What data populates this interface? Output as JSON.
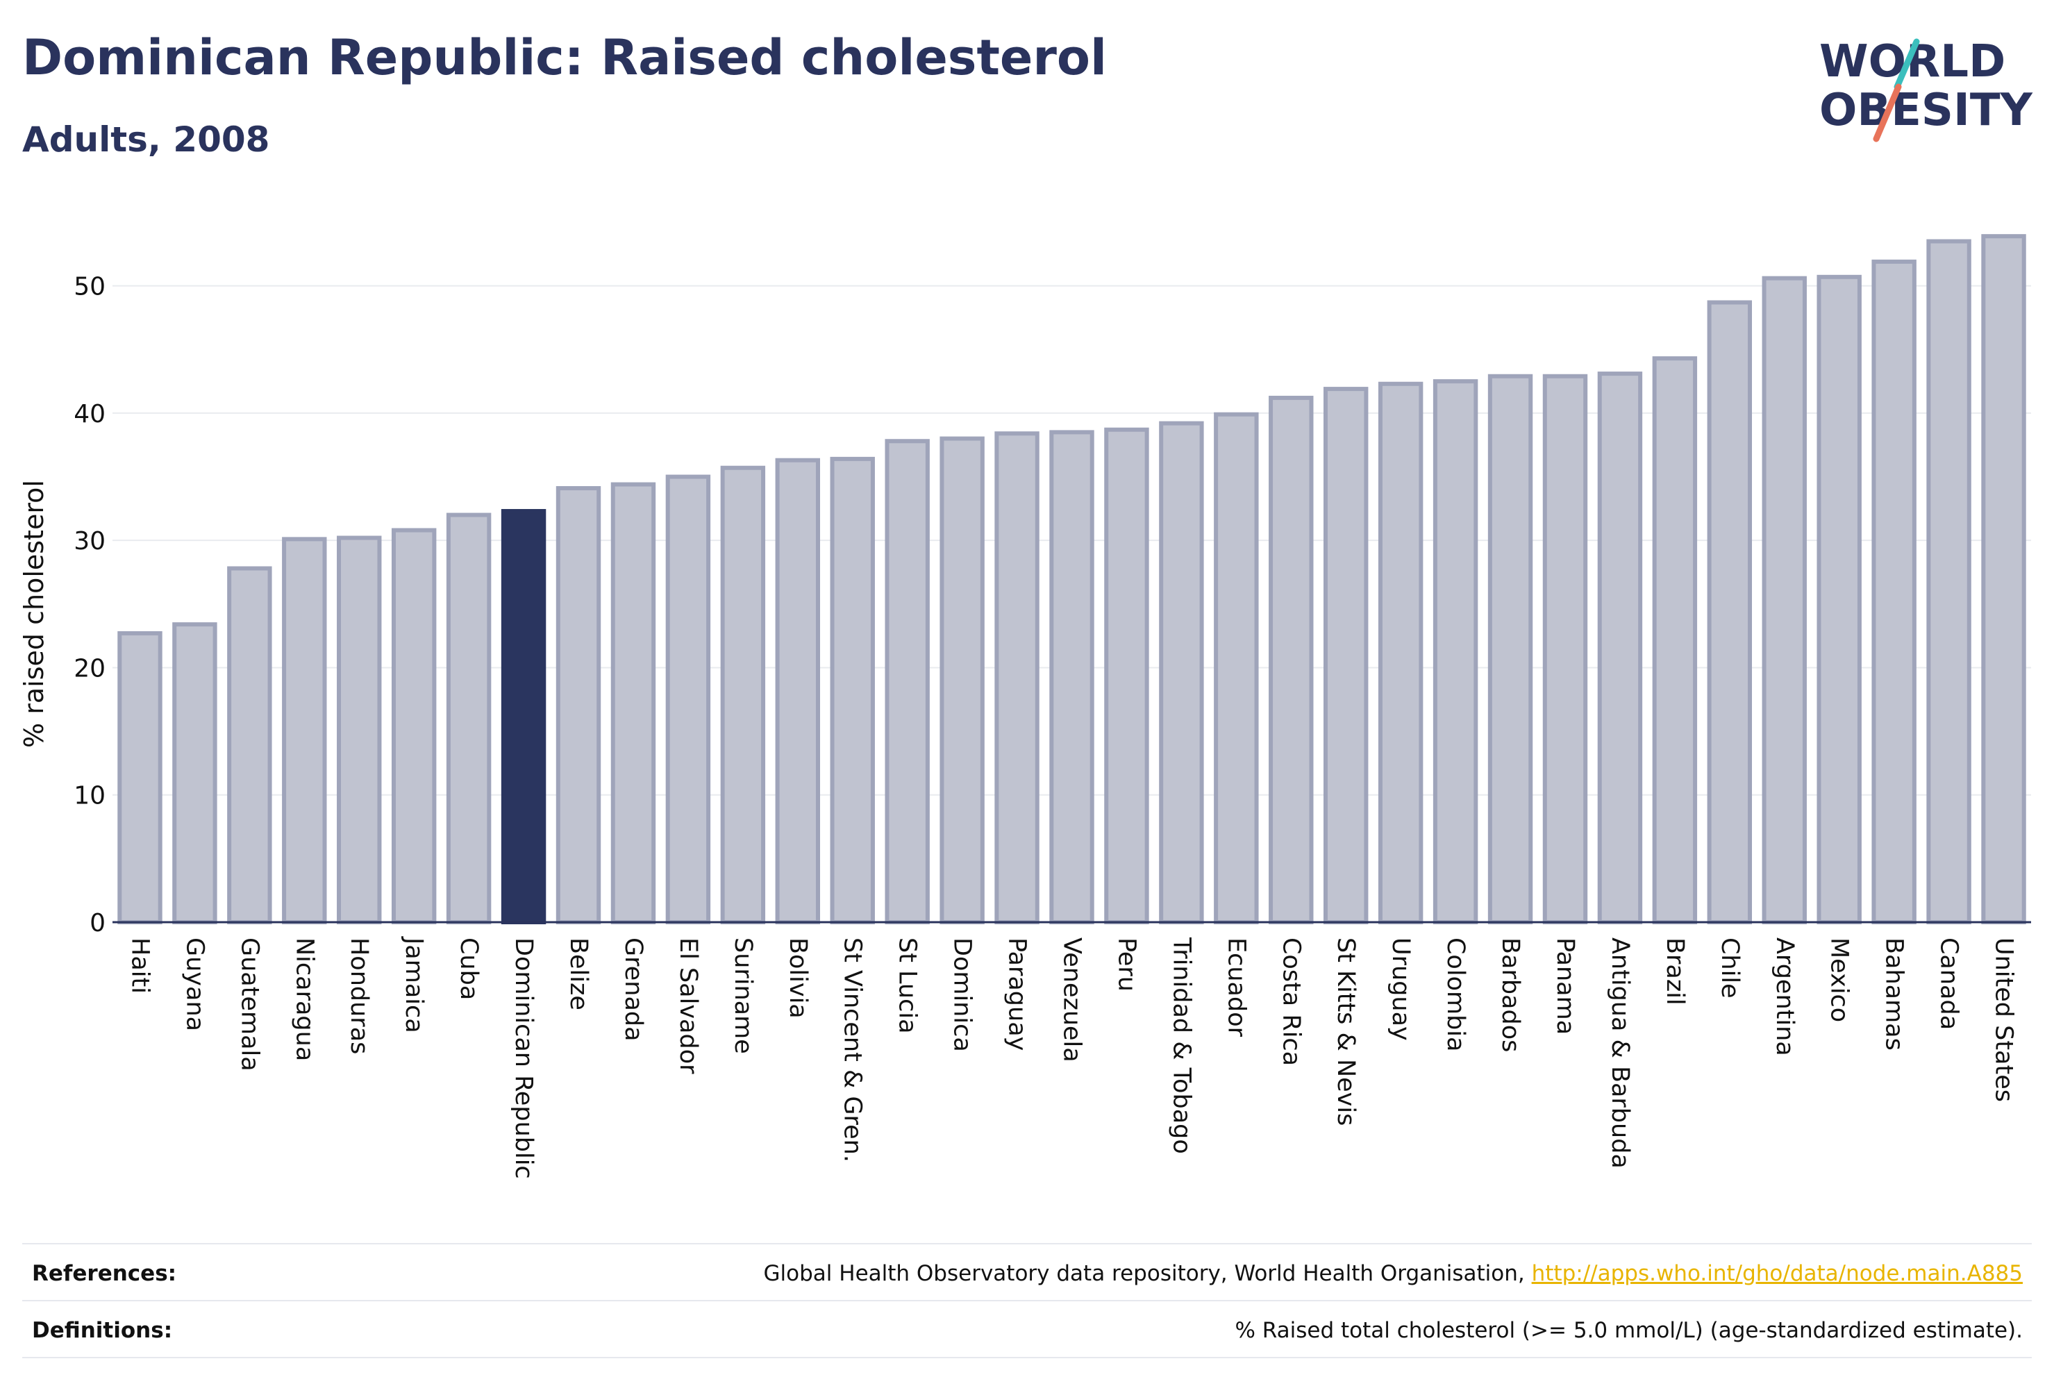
{
  "header": {
    "title": "Dominican Republic: Raised cholesterol",
    "subtitle": "Adults, 2008"
  },
  "logo": {
    "line1": "WORLD",
    "line2": "OBESITY",
    "colors": {
      "text": "#2a335d",
      "teal": "#3bbfbd",
      "coral": "#e8735a"
    }
  },
  "colors": {
    "bar": "#c0c3d0",
    "bar_stroke": "#9fa4ba",
    "highlight": "#2a355f",
    "grid": "#e9ebef",
    "axis": "#2a335d"
  },
  "chart_data": {
    "type": "bar",
    "ylabel": "% raised cholesterol",
    "ylim": [
      0,
      55
    ],
    "yticks": [
      0,
      10,
      20,
      30,
      40,
      50
    ],
    "grid": true,
    "highlight": "Dominican Republic",
    "categories": [
      "Haiti",
      "Guyana",
      "Guatemala",
      "Nicaragua",
      "Honduras",
      "Jamaica",
      "Cuba",
      "Dominican Republic",
      "Belize",
      "Grenada",
      "El Salvador",
      "Suriname",
      "Bolivia",
      "St Vincent & Gren.",
      "St Lucia",
      "Dominica",
      "Paraguay",
      "Venezuela",
      "Peru",
      "Trinidad & Tobago",
      "Ecuador",
      "Costa Rica",
      "St Kitts & Nevis",
      "Uruguay",
      "Colombia",
      "Barbados",
      "Panama",
      "Antigua & Barbuda",
      "Brazil",
      "Chile",
      "Argentina",
      "Mexico",
      "Bahamas",
      "Canada",
      "United States"
    ],
    "values": [
      22.7,
      23.4,
      27.8,
      30.1,
      30.2,
      30.8,
      32.0,
      32.3,
      34.1,
      34.4,
      35.0,
      35.7,
      36.3,
      36.4,
      37.8,
      38.0,
      38.4,
      38.5,
      38.7,
      39.2,
      39.9,
      41.2,
      41.9,
      42.3,
      42.5,
      42.9,
      42.9,
      43.1,
      44.3,
      48.7,
      50.6,
      50.7,
      51.9,
      53.5,
      53.9
    ]
  },
  "footer": {
    "references_label": "References:",
    "references_text": "Global Health Observatory data repository, World Health Organisation,",
    "references_link": "http://apps.who.int/gho/data/node.main.A885",
    "definitions_label": "Definitions:",
    "definitions_text": "% Raised total cholesterol (>= 5.0 mmol/L) (age-standardized estimate)."
  }
}
